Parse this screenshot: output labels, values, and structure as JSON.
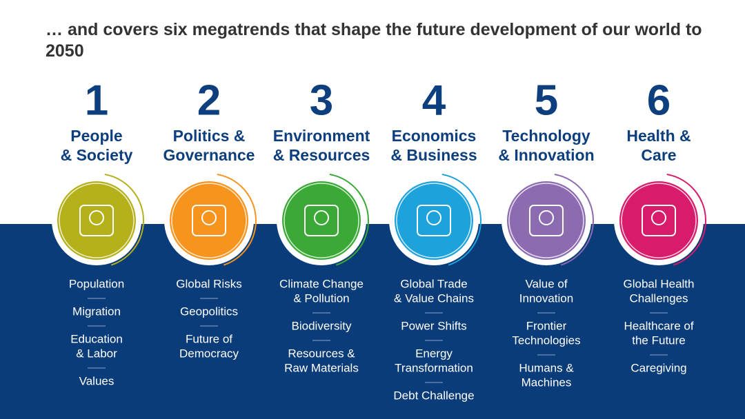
{
  "title": "… and covers six megatrends that shape the future development of our world to 2050",
  "megatrends": [
    {
      "number": 1,
      "title": [
        "People",
        "& Society"
      ],
      "color": "#b4b11b",
      "items": [
        [
          "Population"
        ],
        [
          "Migration"
        ],
        [
          "Education",
          "& Labor"
        ],
        [
          "Values"
        ]
      ]
    },
    {
      "number": 2,
      "title": [
        "Politics &",
        "Governance"
      ],
      "color": "#f7941d",
      "items": [
        [
          "Global Risks"
        ],
        [
          "Geopolitics"
        ],
        [
          "Future of",
          "Democracy"
        ]
      ]
    },
    {
      "number": 3,
      "title": [
        "Environment",
        "& Resources"
      ],
      "color": "#3aa935",
      "items": [
        [
          "Climate Change",
          "& Pollution"
        ],
        [
          "Biodiversity"
        ],
        [
          "Resources &",
          "Raw Materials"
        ]
      ]
    },
    {
      "number": 4,
      "title": [
        "Economics",
        "& Business"
      ],
      "color": "#1ea2dc",
      "items": [
        [
          "Global Trade",
          "& Value Chains"
        ],
        [
          "Power Shifts"
        ],
        [
          "Energy",
          "Transformation"
        ],
        [
          "Debt Challenge"
        ]
      ]
    },
    {
      "number": 5,
      "title": [
        "Technology",
        "& Innovation"
      ],
      "color": "#8c6bb1",
      "items": [
        [
          "Value of",
          "Innovation"
        ],
        [
          "Frontier",
          "Technologies"
        ],
        [
          "Humans &",
          "Machines"
        ]
      ]
    },
    {
      "number": 6,
      "title": [
        "Health &",
        "Care"
      ],
      "color": "#d81b6a",
      "items": [
        [
          "Global Health",
          "Challenges"
        ],
        [
          "Healthcare of",
          "the Future"
        ],
        [
          "Caregiving"
        ]
      ]
    }
  ]
}
